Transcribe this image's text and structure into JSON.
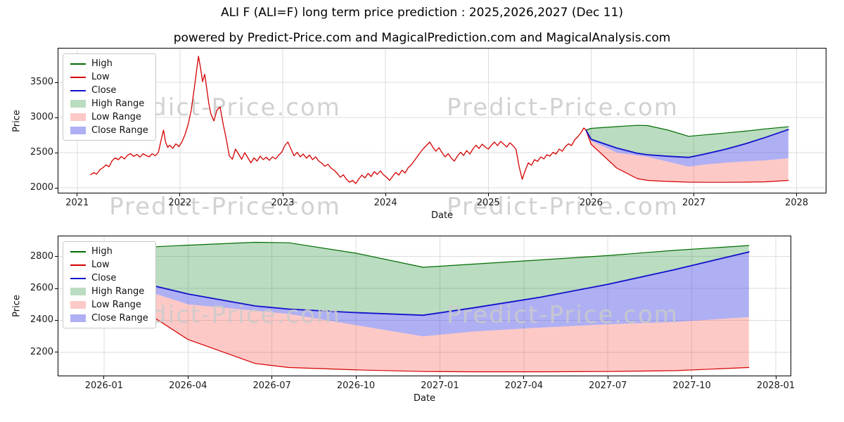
{
  "header": {
    "title": "ALI F (ALI=F) long term price prediction : 2025,2026,2027 (Dec 11)",
    "subtitle": "powered by Predict-Price.com and MagicalPrediction.com and MagicalAnalysis.com"
  },
  "watermark": "Predict-Price.com",
  "colors": {
    "high_line": "#006e00",
    "low_line": "#d40000",
    "close_line": "#1111cc",
    "high_range_fill": "rgba(46,150,66,0.33)",
    "low_range_fill": "rgba(250,90,86,0.33)",
    "close_range_fill": "rgba(64,66,227,0.42)",
    "grid": "#dcdcdc",
    "watermark": "#cbcbcb"
  },
  "legend": [
    {
      "label": "High",
      "swatch": "line",
      "color": "#006e00"
    },
    {
      "label": "Low",
      "swatch": "line",
      "color": "#d40000"
    },
    {
      "label": "Close",
      "swatch": "line",
      "color": "#1111cc"
    },
    {
      "label": "High Range",
      "swatch": "patch",
      "color": "rgba(46,150,66,0.33)"
    },
    {
      "label": "Low Range",
      "swatch": "patch",
      "color": "rgba(250,90,86,0.33)"
    },
    {
      "label": "Close Range",
      "swatch": "patch",
      "color": "rgba(64,66,227,0.42)"
    }
  ],
  "chart_data": [
    {
      "name": "full-history-and-prediction",
      "type": "line",
      "title": "",
      "xlabel": "Date",
      "ylabel": "Price",
      "xlim": [
        2020.81,
        2028.29
      ],
      "ylim": [
        1920,
        3990
      ],
      "grid": true,
      "legend_position": "upper left",
      "xticks": [
        {
          "v": 2021,
          "label": "2021"
        },
        {
          "v": 2022,
          "label": "2022"
        },
        {
          "v": 2023,
          "label": "2023"
        },
        {
          "v": 2024,
          "label": "2024"
        },
        {
          "v": 2025,
          "label": "2025"
        },
        {
          "v": 2026,
          "label": "2026"
        },
        {
          "v": 2027,
          "label": "2027"
        },
        {
          "v": 2028,
          "label": "2028"
        }
      ],
      "yticks": [
        {
          "v": 2000,
          "label": "2000"
        },
        {
          "v": 2500,
          "label": "2500"
        },
        {
          "v": 3000,
          "label": "3000"
        },
        {
          "v": 3500,
          "label": "3500"
        }
      ],
      "history": {
        "name": "Actual price (Low)",
        "color": "#d40000",
        "points": [
          [
            2021.13,
            2185
          ],
          [
            2021.16,
            2215
          ],
          [
            2021.19,
            2195
          ],
          [
            2021.22,
            2255
          ],
          [
            2021.25,
            2285
          ],
          [
            2021.28,
            2325
          ],
          [
            2021.31,
            2300
          ],
          [
            2021.34,
            2385
          ],
          [
            2021.37,
            2425
          ],
          [
            2021.4,
            2400
          ],
          [
            2021.43,
            2445
          ],
          [
            2021.46,
            2410
          ],
          [
            2021.49,
            2465
          ],
          [
            2021.52,
            2485
          ],
          [
            2021.55,
            2445
          ],
          [
            2021.58,
            2475
          ],
          [
            2021.61,
            2435
          ],
          [
            2021.64,
            2485
          ],
          [
            2021.67,
            2460
          ],
          [
            2021.7,
            2440
          ],
          [
            2021.73,
            2485
          ],
          [
            2021.76,
            2455
          ],
          [
            2021.79,
            2505
          ],
          [
            2021.82,
            2700
          ],
          [
            2021.84,
            2820
          ],
          [
            2021.86,
            2650
          ],
          [
            2021.88,
            2575
          ],
          [
            2021.9,
            2605
          ],
          [
            2021.93,
            2560
          ],
          [
            2021.96,
            2625
          ],
          [
            2021.99,
            2585
          ],
          [
            2022.02,
            2655
          ],
          [
            2022.05,
            2760
          ],
          [
            2022.08,
            2905
          ],
          [
            2022.11,
            3110
          ],
          [
            2022.14,
            3420
          ],
          [
            2022.16,
            3650
          ],
          [
            2022.18,
            3870
          ],
          [
            2022.2,
            3705
          ],
          [
            2022.22,
            3510
          ],
          [
            2022.24,
            3615
          ],
          [
            2022.26,
            3415
          ],
          [
            2022.28,
            3205
          ],
          [
            2022.3,
            3055
          ],
          [
            2022.33,
            2950
          ],
          [
            2022.36,
            3105
          ],
          [
            2022.39,
            3150
          ],
          [
            2022.42,
            2905
          ],
          [
            2022.45,
            2700
          ],
          [
            2022.48,
            2455
          ],
          [
            2022.51,
            2405
          ],
          [
            2022.54,
            2550
          ],
          [
            2022.57,
            2480
          ],
          [
            2022.6,
            2405
          ],
          [
            2022.63,
            2500
          ],
          [
            2022.66,
            2430
          ],
          [
            2022.69,
            2355
          ],
          [
            2022.72,
            2425
          ],
          [
            2022.75,
            2380
          ],
          [
            2022.78,
            2450
          ],
          [
            2022.81,
            2400
          ],
          [
            2022.84,
            2435
          ],
          [
            2022.87,
            2390
          ],
          [
            2022.9,
            2440
          ],
          [
            2022.93,
            2410
          ],
          [
            2022.96,
            2465
          ],
          [
            2022.99,
            2505
          ],
          [
            2023.02,
            2600
          ],
          [
            2023.05,
            2650
          ],
          [
            2023.08,
            2550
          ],
          [
            2023.11,
            2455
          ],
          [
            2023.14,
            2505
          ],
          [
            2023.17,
            2440
          ],
          [
            2023.2,
            2480
          ],
          [
            2023.23,
            2420
          ],
          [
            2023.26,
            2465
          ],
          [
            2023.29,
            2400
          ],
          [
            2023.32,
            2440
          ],
          [
            2023.35,
            2380
          ],
          [
            2023.38,
            2350
          ],
          [
            2023.41,
            2305
          ],
          [
            2023.44,
            2335
          ],
          [
            2023.47,
            2280
          ],
          [
            2023.5,
            2250
          ],
          [
            2023.53,
            2205
          ],
          [
            2023.56,
            2150
          ],
          [
            2023.59,
            2185
          ],
          [
            2023.62,
            2120
          ],
          [
            2023.65,
            2080
          ],
          [
            2023.68,
            2105
          ],
          [
            2023.71,
            2060
          ],
          [
            2023.74,
            2125
          ],
          [
            2023.77,
            2180
          ],
          [
            2023.8,
            2140
          ],
          [
            2023.83,
            2205
          ],
          [
            2023.86,
            2160
          ],
          [
            2023.89,
            2230
          ],
          [
            2023.92,
            2190
          ],
          [
            2023.95,
            2240
          ],
          [
            2023.98,
            2185
          ],
          [
            2024.01,
            2150
          ],
          [
            2024.04,
            2105
          ],
          [
            2024.07,
            2165
          ],
          [
            2024.1,
            2220
          ],
          [
            2024.13,
            2180
          ],
          [
            2024.16,
            2250
          ],
          [
            2024.19,
            2210
          ],
          [
            2024.22,
            2285
          ],
          [
            2024.25,
            2325
          ],
          [
            2024.28,
            2385
          ],
          [
            2024.31,
            2445
          ],
          [
            2024.34,
            2505
          ],
          [
            2024.37,
            2560
          ],
          [
            2024.4,
            2605
          ],
          [
            2024.43,
            2650
          ],
          [
            2024.46,
            2580
          ],
          [
            2024.49,
            2520
          ],
          [
            2024.52,
            2570
          ],
          [
            2024.55,
            2500
          ],
          [
            2024.58,
            2440
          ],
          [
            2024.61,
            2485
          ],
          [
            2024.64,
            2420
          ],
          [
            2024.67,
            2380
          ],
          [
            2024.7,
            2450
          ],
          [
            2024.73,
            2505
          ],
          [
            2024.76,
            2460
          ],
          [
            2024.79,
            2530
          ],
          [
            2024.82,
            2480
          ],
          [
            2024.85,
            2550
          ],
          [
            2024.88,
            2605
          ],
          [
            2024.91,
            2560
          ],
          [
            2024.94,
            2620
          ],
          [
            2024.97,
            2580
          ],
          [
            2025.0,
            2550
          ],
          [
            2025.03,
            2605
          ],
          [
            2025.06,
            2650
          ],
          [
            2025.09,
            2600
          ],
          [
            2025.12,
            2660
          ],
          [
            2025.15,
            2620
          ],
          [
            2025.18,
            2580
          ],
          [
            2025.21,
            2640
          ],
          [
            2025.24,
            2600
          ],
          [
            2025.27,
            2545
          ],
          [
            2025.3,
            2300
          ],
          [
            2025.33,
            2120
          ],
          [
            2025.36,
            2250
          ],
          [
            2025.39,
            2355
          ],
          [
            2025.42,
            2320
          ],
          [
            2025.45,
            2400
          ],
          [
            2025.48,
            2375
          ],
          [
            2025.51,
            2440
          ],
          [
            2025.54,
            2410
          ],
          [
            2025.57,
            2470
          ],
          [
            2025.6,
            2450
          ],
          [
            2025.63,
            2505
          ],
          [
            2025.66,
            2480
          ],
          [
            2025.69,
            2550
          ],
          [
            2025.72,
            2520
          ],
          [
            2025.75,
            2585
          ],
          [
            2025.78,
            2625
          ],
          [
            2025.81,
            2600
          ],
          [
            2025.84,
            2680
          ],
          [
            2025.87,
            2725
          ],
          [
            2025.9,
            2780
          ],
          [
            2025.93,
            2850
          ],
          [
            2025.95,
            2820
          ]
        ]
      },
      "prediction": {
        "x": [
          2025.95,
          2026.0,
          2026.25,
          2026.45,
          2026.55,
          2026.75,
          2026.95,
          2027.1,
          2027.3,
          2027.5,
          2027.7,
          2027.92
        ],
        "high": [
          2820,
          2845,
          2870,
          2888,
          2885,
          2820,
          2732,
          2752,
          2778,
          2805,
          2838,
          2868
        ],
        "close": [
          2820,
          2690,
          2565,
          2490,
          2470,
          2448,
          2432,
          2478,
          2545,
          2625,
          2718,
          2828
        ],
        "close_range_lower": [
          2820,
          2670,
          2500,
          2460,
          2440,
          2370,
          2300,
          2330,
          2355,
          2375,
          2390,
          2420
        ],
        "low": [
          2820,
          2620,
          2280,
          2130,
          2105,
          2090,
          2080,
          2078,
          2078,
          2080,
          2085,
          2105
        ]
      }
    },
    {
      "name": "prediction-detail",
      "type": "line",
      "title": "",
      "xlabel": "Date",
      "ylabel": "Price",
      "xlim": [
        2025.862,
        2028.046
      ],
      "ylim": [
        2050,
        2930
      ],
      "grid": true,
      "legend_position": "upper left",
      "xticks": [
        {
          "v": 2026.0,
          "label": "2026-01"
        },
        {
          "v": 2026.25,
          "label": "2026-04"
        },
        {
          "v": 2026.5,
          "label": "2026-07"
        },
        {
          "v": 2026.75,
          "label": "2026-10"
        },
        {
          "v": 2027.0,
          "label": "2027-01"
        },
        {
          "v": 2027.25,
          "label": "2027-04"
        },
        {
          "v": 2027.5,
          "label": "2027-07"
        },
        {
          "v": 2027.75,
          "label": "2027-10"
        },
        {
          "v": 2028.0,
          "label": "2028-01"
        }
      ],
      "yticks": [
        {
          "v": 2200,
          "label": "2200"
        },
        {
          "v": 2400,
          "label": "2400"
        },
        {
          "v": 2600,
          "label": "2600"
        },
        {
          "v": 2800,
          "label": "2800"
        }
      ],
      "prediction": {
        "x": [
          2025.95,
          2026.0,
          2026.25,
          2026.45,
          2026.55,
          2026.75,
          2026.95,
          2027.1,
          2027.3,
          2027.5,
          2027.7,
          2027.92
        ],
        "high": [
          2820,
          2845,
          2870,
          2888,
          2885,
          2820,
          2732,
          2752,
          2778,
          2805,
          2838,
          2868
        ],
        "close": [
          2820,
          2690,
          2565,
          2490,
          2470,
          2448,
          2432,
          2478,
          2545,
          2625,
          2718,
          2828
        ],
        "close_range_lower": [
          2820,
          2670,
          2500,
          2460,
          2440,
          2370,
          2300,
          2330,
          2355,
          2375,
          2390,
          2420
        ],
        "low": [
          2820,
          2620,
          2280,
          2130,
          2105,
          2090,
          2080,
          2078,
          2078,
          2080,
          2085,
          2105
        ]
      }
    }
  ]
}
